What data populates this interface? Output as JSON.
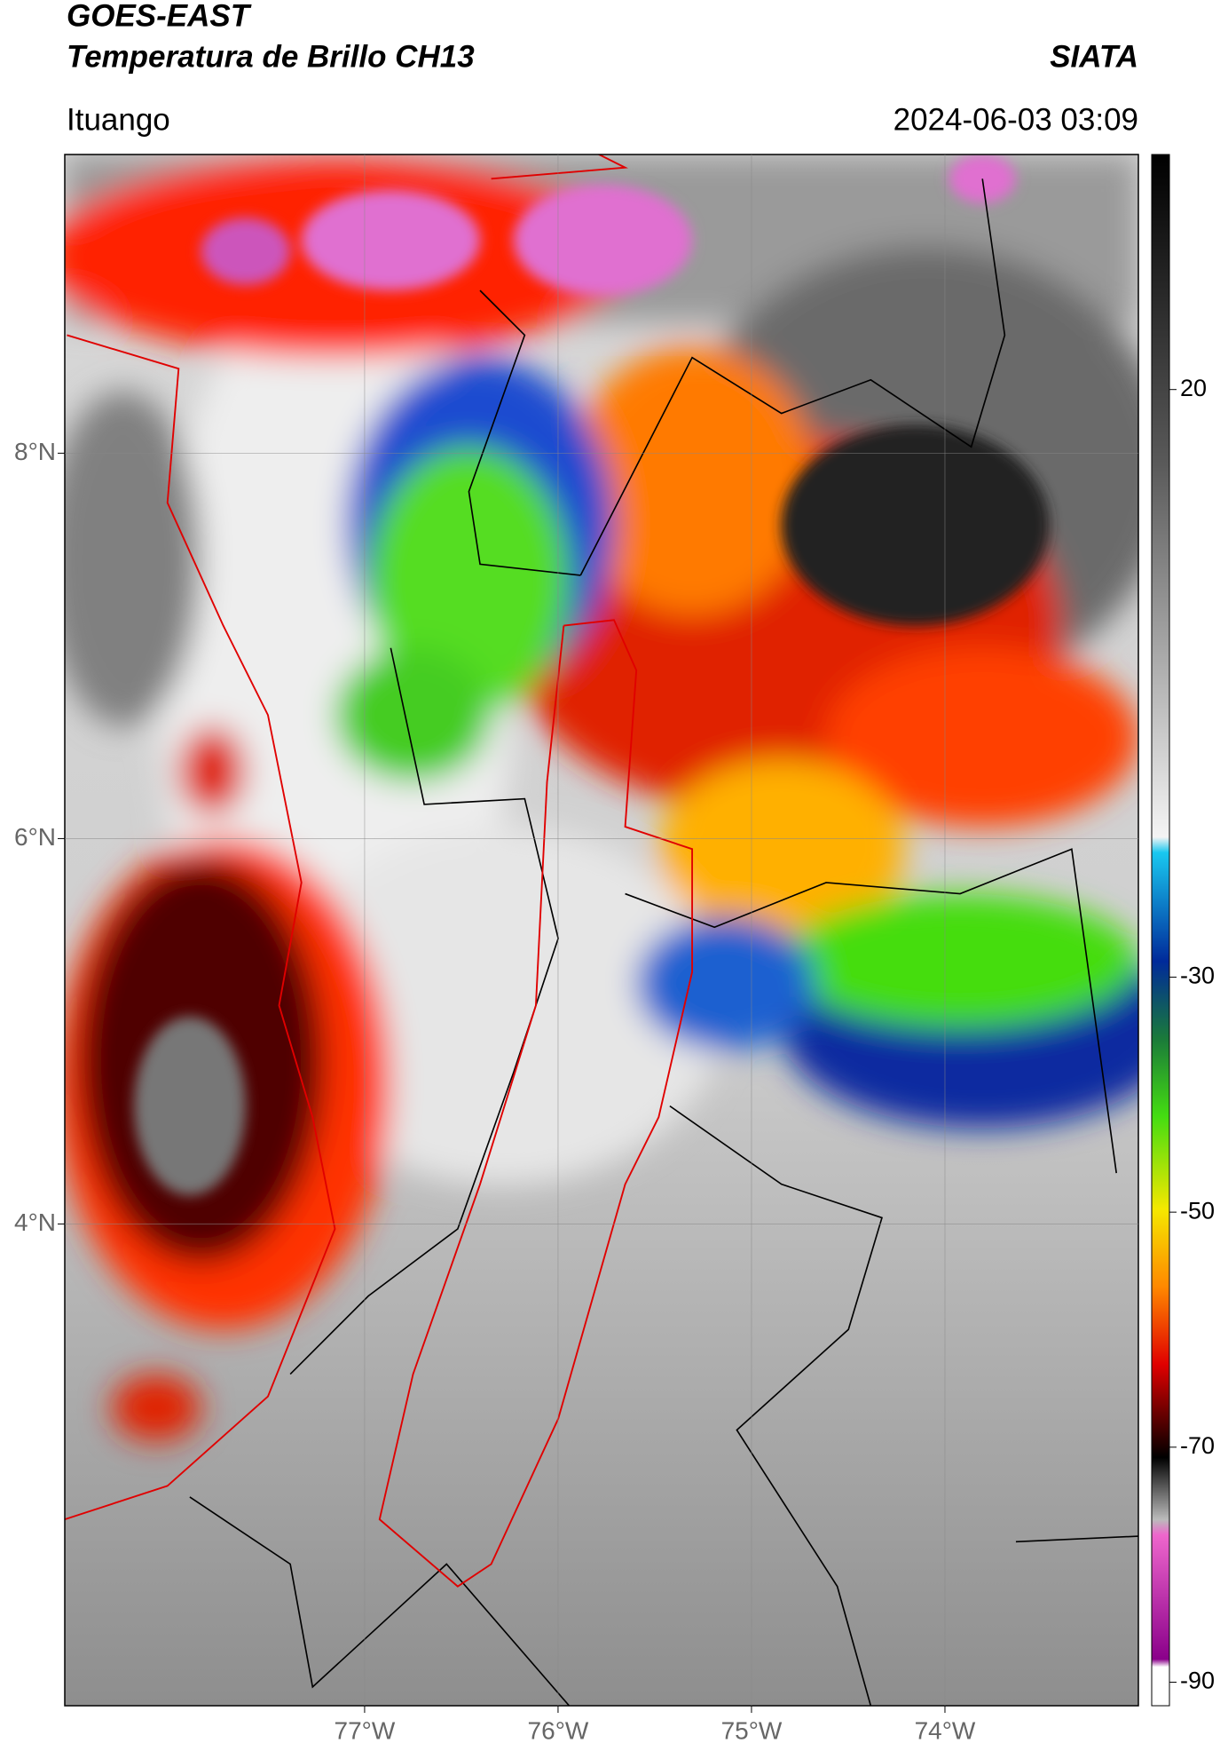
{
  "header": {
    "title_line1": "GOES-EAST",
    "title_line2": "Temperatura de Brillo CH13",
    "source": "SIATA",
    "region": "Ituango",
    "datetime": "2024-06-03 03:09"
  },
  "map": {
    "xlim": [
      -78.55,
      -73
    ],
    "ylim": [
      1.5,
      9.55
    ],
    "xticks": [
      {
        "value": -77,
        "label": "77°W"
      },
      {
        "value": -76,
        "label": "76°W"
      },
      {
        "value": -75,
        "label": "75°W"
      },
      {
        "value": -74,
        "label": "74°W"
      }
    ],
    "yticks": [
      {
        "value": 4,
        "label": "4°N"
      },
      {
        "value": 6,
        "label": "6°N"
      },
      {
        "value": 8,
        "label": "8°N"
      }
    ]
  },
  "colorbar": {
    "lim": [
      -92,
      40
    ],
    "ticks": [
      -90,
      -70,
      -50,
      -30,
      20
    ]
  }
}
